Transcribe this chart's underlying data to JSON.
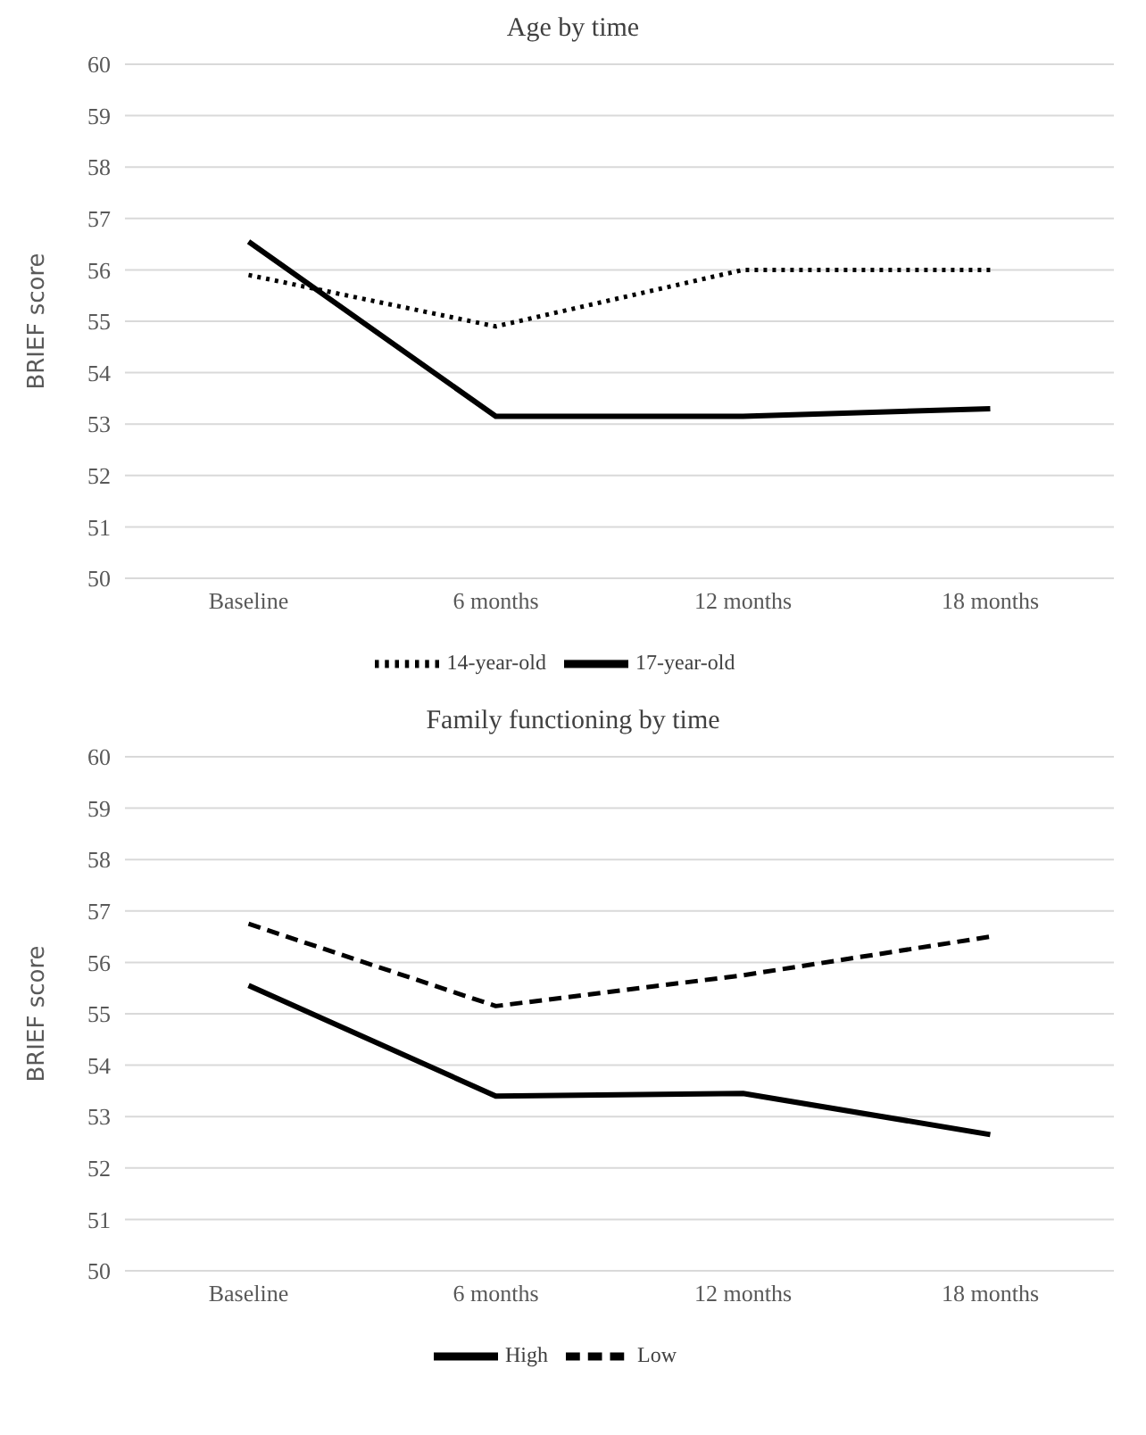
{
  "chart_data": [
    {
      "type": "line",
      "title": "Age by time",
      "ylabel": "BRIEF score",
      "categories": [
        "Baseline",
        "6 months",
        "12 months",
        "18 months"
      ],
      "ylim": [
        50,
        60
      ],
      "yticks": [
        50,
        51,
        52,
        53,
        54,
        55,
        56,
        57,
        58,
        59,
        60
      ],
      "grid": "y",
      "legend": "bottom",
      "marker": "none",
      "series": [
        {
          "name": "14-year-old",
          "color": "#000000",
          "line_style": "dotted",
          "values": [
            55.9,
            54.9,
            56.0,
            56.0
          ]
        },
        {
          "name": "17-year-old",
          "color": "#000000",
          "line_style": "solid",
          "values": [
            56.55,
            53.15,
            53.15,
            53.3
          ]
        }
      ]
    },
    {
      "type": "line",
      "title": "Family functioning by time",
      "ylabel": "BRIEF score",
      "categories": [
        "Baseline",
        "6 months",
        "12 months",
        "18 months"
      ],
      "ylim": [
        50,
        60
      ],
      "yticks": [
        50,
        51,
        52,
        53,
        54,
        55,
        56,
        57,
        58,
        59,
        60
      ],
      "grid": "y",
      "legend": "bottom",
      "marker": "none",
      "series": [
        {
          "name": "High",
          "color": "#000000",
          "line_style": "solid",
          "values": [
            55.55,
            53.4,
            53.45,
            52.65
          ]
        },
        {
          "name": "Low",
          "color": "#000000",
          "line_style": "dashed",
          "values": [
            56.75,
            55.15,
            55.75,
            56.5
          ]
        }
      ]
    }
  ]
}
